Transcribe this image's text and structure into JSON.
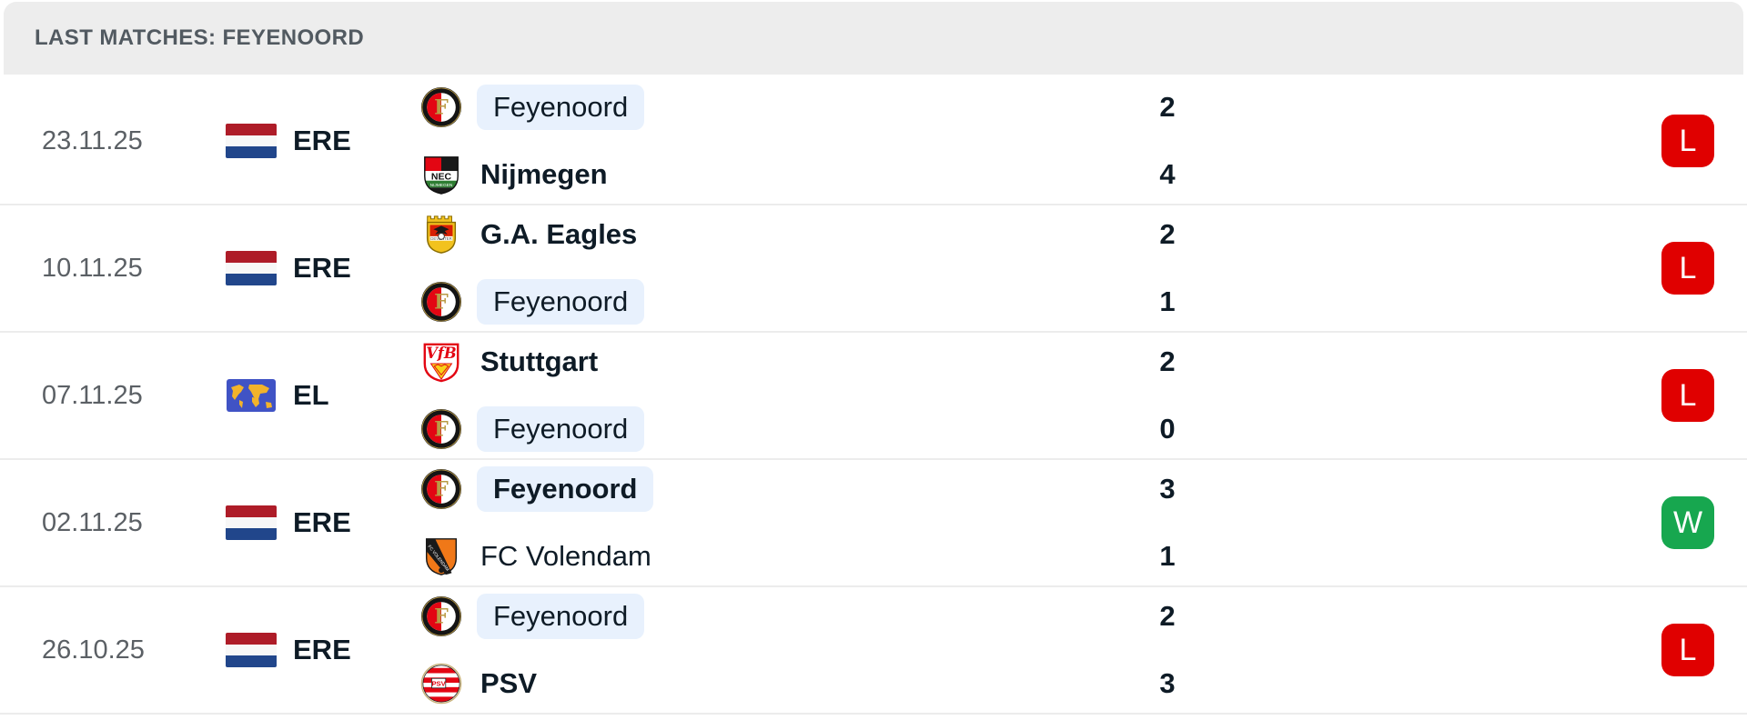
{
  "header": {
    "title": "LAST MATCHES: FEYENOORD"
  },
  "colors": {
    "win_badge": "#17a74f",
    "loss_badge": "#e00000",
    "highlight_pill": "#e8f1fd",
    "header_bg": "#ededed",
    "header_text": "#525a61",
    "date_text": "#5b6065",
    "dark_text": "#0e1b26",
    "separator": "#ececec",
    "flag_red": "#ae1c28",
    "flag_white": "#f7f7f7",
    "flag_blue": "#21468b",
    "map_blue": "#4053c5",
    "map_land": "#f2b32a"
  },
  "matches": [
    {
      "date": "23.11.25",
      "competition": "ERE",
      "competition_icon": "netherlands-flag",
      "home": {
        "name": "Feyenoord",
        "logo": "feyenoord",
        "bold": false,
        "highlighted": true,
        "score": "2"
      },
      "away": {
        "name": "Nijmegen",
        "logo": "nijmegen",
        "bold": true,
        "highlighted": false,
        "score": "4"
      },
      "result": "L"
    },
    {
      "date": "10.11.25",
      "competition": "ERE",
      "competition_icon": "netherlands-flag",
      "home": {
        "name": "G.A. Eagles",
        "logo": "ga-eagles",
        "bold": true,
        "highlighted": false,
        "score": "2"
      },
      "away": {
        "name": "Feyenoord",
        "logo": "feyenoord",
        "bold": false,
        "highlighted": true,
        "score": "1"
      },
      "result": "L"
    },
    {
      "date": "07.11.25",
      "competition": "EL",
      "competition_icon": "world-map",
      "home": {
        "name": "Stuttgart",
        "logo": "stuttgart",
        "bold": true,
        "highlighted": false,
        "score": "2"
      },
      "away": {
        "name": "Feyenoord",
        "logo": "feyenoord",
        "bold": false,
        "highlighted": true,
        "score": "0"
      },
      "result": "L"
    },
    {
      "date": "02.11.25",
      "competition": "ERE",
      "competition_icon": "netherlands-flag",
      "home": {
        "name": "Feyenoord",
        "logo": "feyenoord",
        "bold": true,
        "highlighted": true,
        "score": "3"
      },
      "away": {
        "name": "FC Volendam",
        "logo": "volendam",
        "bold": false,
        "highlighted": false,
        "score": "1"
      },
      "result": "W"
    },
    {
      "date": "26.10.25",
      "competition": "ERE",
      "competition_icon": "netherlands-flag",
      "home": {
        "name": "Feyenoord",
        "logo": "feyenoord",
        "bold": false,
        "highlighted": true,
        "score": "2"
      },
      "away": {
        "name": "PSV",
        "logo": "psv",
        "bold": true,
        "highlighted": false,
        "score": "3"
      },
      "result": "L"
    }
  ]
}
